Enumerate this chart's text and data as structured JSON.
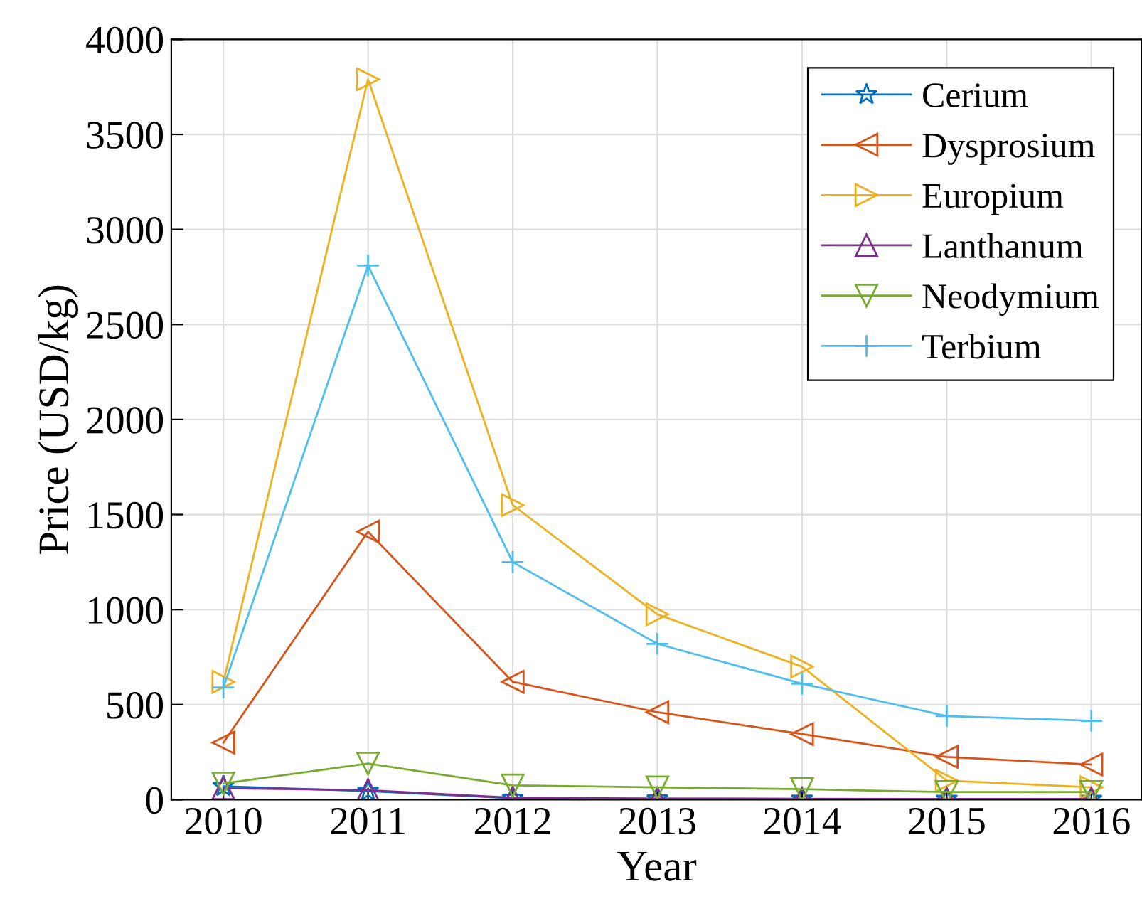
{
  "chart_data": {
    "type": "line",
    "xlabel": "Year",
    "ylabel": "Price (USD/kg)",
    "x": [
      2010,
      2011,
      2012,
      2013,
      2014,
      2015,
      2016
    ],
    "xlim": [
      2009.64,
      2016.35
    ],
    "xticks": [
      2010,
      2011,
      2012,
      2013,
      2014,
      2015,
      2016
    ],
    "ylim": [
      0,
      4000
    ],
    "yticks": [
      0,
      500,
      1000,
      1500,
      2000,
      2500,
      3000,
      3500,
      4000
    ],
    "grid": true,
    "legend": "top right",
    "series": [
      {
        "name": "Cerium",
        "color": "#0072bd",
        "marker": "star",
        "values": [
          70,
          45,
          8,
          5,
          4,
          3,
          3
        ]
      },
      {
        "name": "Dysprosium",
        "color": "#d95319",
        "marker": "triangle_left",
        "values": [
          300,
          1410,
          620,
          460,
          345,
          225,
          185
        ]
      },
      {
        "name": "Europium",
        "color": "#edb120",
        "marker": "triangle_right",
        "values": [
          620,
          3790,
          1550,
          975,
          700,
          100,
          65
        ]
      },
      {
        "name": "Lanthanum",
        "color": "#7e2f8e",
        "marker": "triangle",
        "values": [
          60,
          50,
          10,
          6,
          5,
          4,
          4
        ]
      },
      {
        "name": "Neodymium",
        "color": "#77ac30",
        "marker": "triangle_down",
        "values": [
          85,
          190,
          75,
          65,
          55,
          40,
          40
        ]
      },
      {
        "name": "Terbium",
        "color": "#4dbeee",
        "marker": "cross",
        "values": [
          590,
          2810,
          1250,
          820,
          610,
          440,
          415
        ]
      }
    ]
  }
}
